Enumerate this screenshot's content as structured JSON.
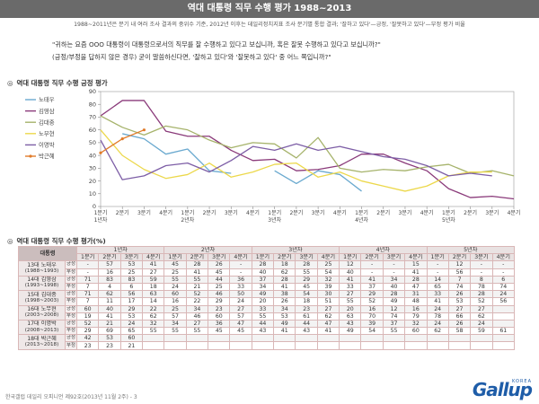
{
  "header": {
    "title": "역대 대통령 직무 수행 평가 1988~2013",
    "subtitle": "1988~2011년은 분기 내 여러 조사 결과의 중위수 기준, 2012년 이후는 데일리정치지표 조사 분기별 통합 결과; '잘하고 있다'—긍정, '잘못하고 있다'—부정 평가 비율"
  },
  "question": {
    "line1": "\"귀하는 요즘 OOO 대통령이 대통령으로서의 직무를 잘 수행하고 있다고 보십니까, 혹은 잘못 수행하고 있다고 보십니까?\"",
    "line2": "(긍정/부정을 답하지 않은 경우) 굳이 말씀하신다면, '잘하고 있다'와 '잘못하고 있다' 중 어느 쪽입니까?\""
  },
  "sections": {
    "chart_title": "역대 대통령 직무 수행 긍정 평가",
    "table_title": "역대 대통령 직무 수행 평가(%)",
    "bullet": "◎"
  },
  "colors": {
    "노태우": "#6aa9cf",
    "김영삼": "#8a3a7a",
    "김대중": "#a6b36b",
    "노무현": "#ecd84b",
    "이명박": "#7d5ea6",
    "박근혜": "#e07b2a"
  },
  "chart_data": {
    "type": "line",
    "ylim": [
      0,
      90
    ],
    "yticks": [
      0,
      10,
      20,
      30,
      40,
      50,
      60,
      70,
      80,
      90
    ],
    "x_labels": [
      "1분기",
      "2분기",
      "3분기",
      "4분기",
      "1분기",
      "2분기",
      "3분기",
      "4분기",
      "1분기",
      "2분기",
      "3분기",
      "4분기",
      "1분기",
      "2분기",
      "3분기",
      "4분기",
      "1분기",
      "2분기",
      "3분기",
      "4분기"
    ],
    "year_labels": [
      "1년차",
      "2년차",
      "3년차",
      "4년차",
      "5년차"
    ],
    "series": [
      {
        "name": "노태우",
        "values": [
          null,
          57,
          53,
          41,
          45,
          28,
          26,
          null,
          28,
          18,
          28,
          25,
          12,
          null,
          null,
          15,
          null,
          12,
          null,
          null
        ]
      },
      {
        "name": "김영삼",
        "values": [
          71,
          83,
          83,
          59,
          55,
          55,
          44,
          36,
          37,
          28,
          29,
          32,
          41,
          41,
          34,
          28,
          14,
          7,
          8,
          6
        ]
      },
      {
        "name": "김대중",
        "values": [
          71,
          62,
          56,
          63,
          60,
          52,
          46,
          50,
          49,
          38,
          54,
          30,
          27,
          29,
          28,
          31,
          33,
          26,
          28,
          24
        ]
      },
      {
        "name": "노무현",
        "values": [
          60,
          40,
          29,
          22,
          25,
          34,
          23,
          27,
          33,
          34,
          23,
          27,
          20,
          16,
          12,
          16,
          24,
          27,
          27,
          null
        ]
      },
      {
        "name": "이명박",
        "values": [
          52,
          21,
          24,
          32,
          34,
          27,
          36,
          47,
          44,
          49,
          44,
          47,
          43,
          39,
          37,
          32,
          24,
          26,
          24,
          null
        ]
      },
      {
        "name": "박근혜",
        "values": [
          42,
          53,
          60,
          null,
          null,
          null,
          null,
          null,
          null,
          null,
          null,
          null,
          null,
          null,
          null,
          null,
          null,
          null,
          null,
          null
        ]
      }
    ]
  },
  "table": {
    "corner": "재임연차",
    "kind_header": "대통령",
    "year_headers": [
      "1년차",
      "2년차",
      "3년차",
      "4년차",
      "5년차"
    ],
    "quarter_headers": [
      "1분기",
      "2분기",
      "3분기",
      "4분기",
      "1분기",
      "2분기",
      "3분기",
      "4분기",
      "1분기",
      "2분기",
      "3분기",
      "4분기",
      "1분기",
      "2분기",
      "3분기",
      "4분기",
      "1분기",
      "2분기",
      "3분기",
      "4분기"
    ],
    "positive_label": "긍정",
    "negative_label": "부정",
    "rows": [
      {
        "name": "13대 노태우",
        "years": "(1988~1993)",
        "pos": [
          "-",
          "57",
          "53",
          "41",
          "45",
          "28",
          "26",
          "-",
          "28",
          "18",
          "28",
          "25",
          "12",
          "-",
          "-",
          "15",
          "-",
          "12",
          "-",
          "-"
        ],
        "neg": [
          "-",
          "16",
          "25",
          "27",
          "25",
          "41",
          "45",
          "-",
          "40",
          "62",
          "55",
          "54",
          "40",
          "-",
          "-",
          "41",
          "-",
          "56",
          "-",
          "-"
        ]
      },
      {
        "name": "14대 김영삼",
        "years": "(1993~1998)",
        "pos": [
          "71",
          "83",
          "83",
          "59",
          "55",
          "55",
          "44",
          "36",
          "37",
          "28",
          "29",
          "32",
          "41",
          "41",
          "34",
          "28",
          "14",
          "7",
          "8",
          "6"
        ],
        "neg": [
          "7",
          "4",
          "6",
          "18",
          "24",
          "21",
          "25",
          "33",
          "34",
          "41",
          "45",
          "39",
          "33",
          "37",
          "40",
          "47",
          "65",
          "74",
          "78",
          "74"
        ]
      },
      {
        "name": "15대 김대중",
        "years": "(1998~2003)",
        "pos": [
          "71",
          "62",
          "56",
          "63",
          "60",
          "52",
          "46",
          "50",
          "49",
          "38",
          "54",
          "30",
          "27",
          "29",
          "28",
          "31",
          "33",
          "26",
          "28",
          "24"
        ],
        "neg": [
          "7",
          "11",
          "17",
          "14",
          "16",
          "22",
          "29",
          "24",
          "20",
          "26",
          "18",
          "51",
          "55",
          "52",
          "49",
          "48",
          "41",
          "53",
          "52",
          "56"
        ]
      },
      {
        "name": "16대 노무현",
        "years": "(2003~2008)",
        "pos": [
          "60",
          "40",
          "29",
          "22",
          "25",
          "34",
          "23",
          "27",
          "33",
          "34",
          "23",
          "27",
          "20",
          "16",
          "12",
          "16",
          "24",
          "27",
          "27",
          ""
        ],
        "neg": [
          "19",
          "41",
          "53",
          "62",
          "57",
          "46",
          "60",
          "57",
          "55",
          "53",
          "61",
          "62",
          "63",
          "70",
          "74",
          "79",
          "78",
          "66",
          "62",
          ""
        ]
      },
      {
        "name": "17대 이명박",
        "years": "(2008~2013)",
        "pos": [
          "52",
          "21",
          "24",
          "32",
          "34",
          "27",
          "36",
          "47",
          "44",
          "49",
          "44",
          "47",
          "43",
          "39",
          "37",
          "32",
          "24",
          "26",
          "24",
          ""
        ],
        "neg": [
          "29",
          "69",
          "65",
          "55",
          "55",
          "55",
          "45",
          "45",
          "43",
          "41",
          "43",
          "41",
          "49",
          "54",
          "55",
          "60",
          "62",
          "58",
          "59",
          "61"
        ]
      },
      {
        "name": "18대 박근혜",
        "years": "(2013~2018)",
        "pos": [
          "42",
          "53",
          "60",
          "",
          "",
          "",
          "",
          "",
          "",
          "",
          "",
          "",
          "",
          "",
          "",
          "",
          "",
          "",
          "",
          ""
        ],
        "neg": [
          "23",
          "23",
          "21",
          "",
          "",
          "",
          "",
          "",
          "",
          "",
          "",
          "",
          "",
          "",
          "",
          "",
          "",
          "",
          "",
          ""
        ]
      }
    ]
  },
  "footer": "한국갤럽 데일리 오피니언 제92호(2013년 11월 2주) - 3",
  "logo": {
    "brand": "Gallup",
    "tag": "KOREA"
  }
}
